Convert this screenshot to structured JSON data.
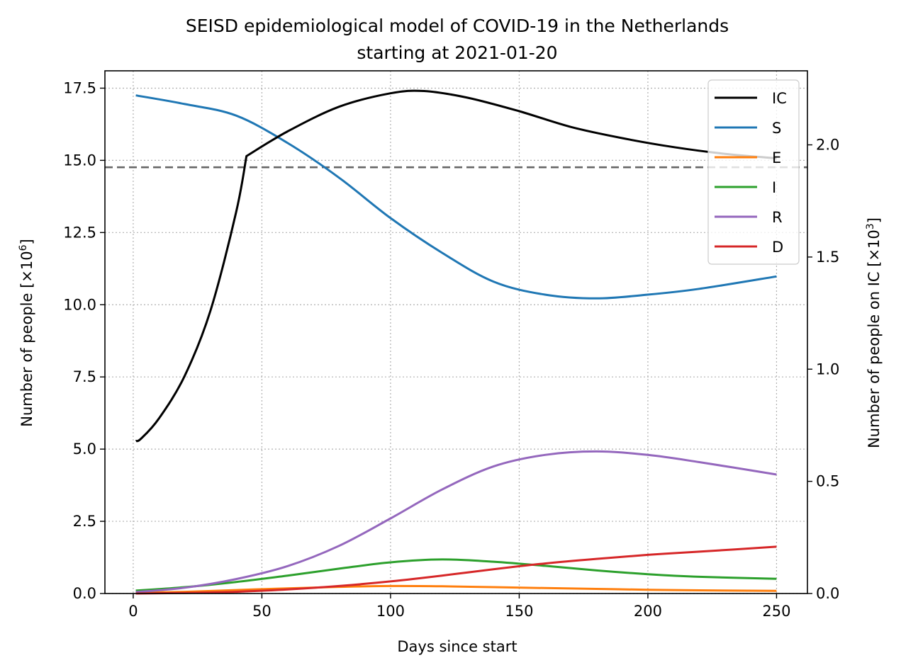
{
  "chart_data": {
    "type": "line",
    "title": "SEISD epidemiological model of COVID-19 in the Netherlands",
    "subtitle": "starting at 2021-01-20",
    "xlabel": "Days since start",
    "ylabel_prefix": "Number of people [×10",
    "ylabel_exp": "6",
    "ylabel_suffix": "]",
    "y2label_prefix": "Number of people on IC [×10",
    "y2label_exp": "3",
    "y2label_suffix": "]",
    "xlim": [
      -11,
      262
    ],
    "ylim": [
      0,
      18.1
    ],
    "y2lim": [
      0,
      2.33
    ],
    "grid": true,
    "grid_style": "dotted",
    "legend_position": "top-right",
    "xticks": [
      0,
      50,
      100,
      150,
      200,
      250
    ],
    "xtick_labels": [
      "0",
      "50",
      "100",
      "150",
      "200",
      "250"
    ],
    "yticks": [
      0,
      2.5,
      5,
      7.5,
      10,
      12.5,
      15,
      17.5
    ],
    "ytick_labels": [
      "0.0",
      "2.5",
      "5.0",
      "7.5",
      "10.0",
      "12.5",
      "15.0",
      "17.5"
    ],
    "y2ticks": [
      0,
      0.5,
      1.0,
      1.5,
      2.0
    ],
    "y2tick_labels": [
      "0.0",
      "0.5",
      "1.0",
      "1.5",
      "2.0"
    ],
    "hline": {
      "axis": "right",
      "value": 1.9,
      "color": "#666666",
      "style": "dashed"
    },
    "x": [
      1,
      20,
      40,
      60,
      80,
      100,
      120,
      140,
      160,
      180,
      200,
      220,
      250
    ],
    "series": [
      {
        "name": "IC",
        "axis": "right",
        "color": "#000000",
        "x": [
          1,
          3,
          10,
          20,
          30,
          40,
          44,
          60,
          80,
          100,
          113,
          130,
          150,
          170,
          190,
          210,
          230,
          250
        ],
        "values": [
          0.68,
          0.69,
          0.78,
          0.97,
          1.26,
          1.7,
          1.95,
          2.06,
          2.17,
          2.23,
          2.24,
          2.21,
          2.15,
          2.08,
          2.03,
          1.99,
          1.96,
          1.94
        ]
      },
      {
        "name": "S",
        "axis": "left",
        "color": "#1f77b4",
        "values": [
          17.25,
          16.95,
          16.55,
          15.6,
          14.4,
          13.0,
          11.8,
          10.8,
          10.35,
          10.22,
          10.35,
          10.55,
          10.98
        ]
      },
      {
        "name": "E",
        "axis": "left",
        "color": "#ff7f0e",
        "values": [
          0.03,
          0.06,
          0.12,
          0.18,
          0.23,
          0.26,
          0.25,
          0.22,
          0.19,
          0.16,
          0.13,
          0.11,
          0.09
        ]
      },
      {
        "name": "I",
        "axis": "left",
        "color": "#2ca02c",
        "values": [
          0.1,
          0.22,
          0.4,
          0.62,
          0.86,
          1.08,
          1.18,
          1.1,
          0.96,
          0.8,
          0.67,
          0.58,
          0.51
        ]
      },
      {
        "name": "R",
        "axis": "left",
        "color": "#9467bd",
        "values": [
          0.05,
          0.2,
          0.5,
          0.95,
          1.65,
          2.6,
          3.6,
          4.4,
          4.8,
          4.92,
          4.8,
          4.55,
          4.12
        ]
      },
      {
        "name": "D",
        "axis": "left",
        "color": "#d62728",
        "values": [
          0.0,
          0.02,
          0.06,
          0.14,
          0.26,
          0.42,
          0.62,
          0.84,
          1.04,
          1.2,
          1.34,
          1.45,
          1.62
        ]
      }
    ]
  }
}
